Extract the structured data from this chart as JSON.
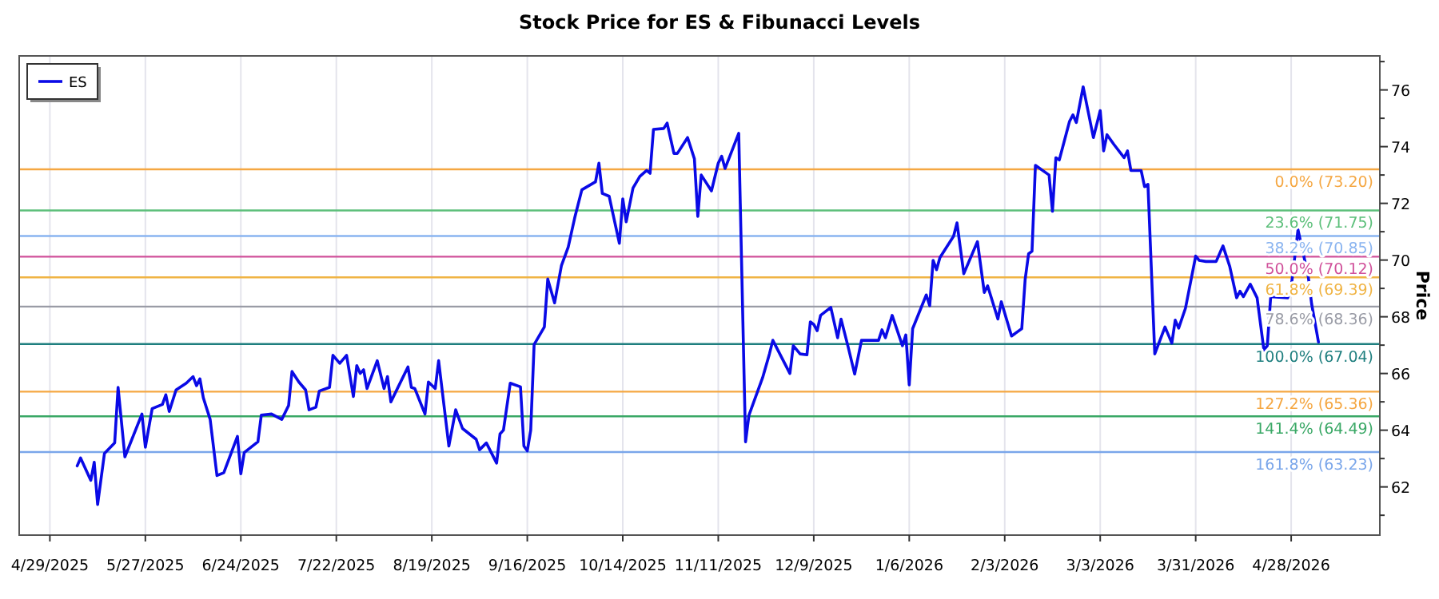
{
  "chart_data": {
    "type": "line",
    "title": "Stock Price for ES & Fibunacci Levels",
    "ylabel": "Price",
    "x": [
      "2025-05-07",
      "2025-05-08",
      "2025-05-11",
      "2025-05-12",
      "2025-05-13",
      "2025-05-15",
      "2025-05-18",
      "2025-05-19",
      "2025-05-21",
      "2025-05-26",
      "2025-05-27",
      "2025-05-29",
      "2025-06-01",
      "2025-06-02",
      "2025-06-03",
      "2025-06-05",
      "2025-06-08",
      "2025-06-10",
      "2025-06-11",
      "2025-06-12",
      "2025-06-13",
      "2025-06-15",
      "2025-06-17",
      "2025-06-19",
      "2025-06-23",
      "2025-06-24",
      "2025-06-25",
      "2025-06-29",
      "2025-06-30",
      "2025-07-03",
      "2025-07-06",
      "2025-07-08",
      "2025-07-09",
      "2025-07-11",
      "2025-07-13",
      "2025-07-14",
      "2025-07-16",
      "2025-07-17",
      "2025-07-20",
      "2025-07-21",
      "2025-07-23",
      "2025-07-25",
      "2025-07-27",
      "2025-07-28",
      "2025-07-29",
      "2025-07-30",
      "2025-07-31",
      "2025-08-03",
      "2025-08-05",
      "2025-08-06",
      "2025-08-07",
      "2025-08-12",
      "2025-08-13",
      "2025-08-14",
      "2025-08-17",
      "2025-08-18",
      "2025-08-20",
      "2025-08-21",
      "2025-08-24",
      "2025-08-26",
      "2025-08-28",
      "2025-09-01",
      "2025-09-02",
      "2025-09-04",
      "2025-09-07",
      "2025-09-08",
      "2025-09-09",
      "2025-09-11",
      "2025-09-14",
      "2025-09-15",
      "2025-09-16",
      "2025-09-17",
      "2025-09-18",
      "2025-09-21",
      "2025-09-22",
      "2025-09-24",
      "2025-09-26",
      "2025-09-28",
      "2025-09-30",
      "2025-10-02",
      "2025-10-06",
      "2025-10-07",
      "2025-10-08",
      "2025-10-10",
      "2025-10-13",
      "2025-10-14",
      "2025-10-15",
      "2025-10-17",
      "2025-10-19",
      "2025-10-21",
      "2025-10-22",
      "2025-10-23",
      "2025-10-26",
      "2025-10-27",
      "2025-10-29",
      "2025-10-30",
      "2025-11-02",
      "2025-11-04",
      "2025-11-05",
      "2025-11-06",
      "2025-11-09",
      "2025-11-11",
      "2025-11-12",
      "2025-11-13",
      "2025-11-17",
      "2025-11-19",
      "2025-11-20",
      "2025-11-24",
      "2025-11-26",
      "2025-11-27",
      "2025-12-02",
      "2025-12-03",
      "2025-12-05",
      "2025-12-07",
      "2025-12-08",
      "2025-12-09",
      "2025-12-10",
      "2025-12-11",
      "2025-12-14",
      "2025-12-16",
      "2025-12-17",
      "2025-12-19",
      "2025-12-21",
      "2025-12-23",
      "2025-12-28",
      "2025-12-29",
      "2025-12-30",
      "2026-01-01",
      "2026-01-04",
      "2026-01-05",
      "2026-01-06",
      "2026-01-07",
      "2026-01-11",
      "2026-01-12",
      "2026-01-13",
      "2026-01-14",
      "2026-01-15",
      "2026-01-19",
      "2026-01-20",
      "2026-01-22",
      "2026-01-26",
      "2026-01-28",
      "2026-01-29",
      "2026-02-01",
      "2026-02-02",
      "2026-02-05",
      "2026-02-08",
      "2026-02-09",
      "2026-02-10",
      "2026-02-11",
      "2026-02-12",
      "2026-02-16",
      "2026-02-17",
      "2026-02-18",
      "2026-02-19",
      "2026-02-22",
      "2026-02-23",
      "2026-02-24",
      "2026-02-26",
      "2026-03-01",
      "2026-03-03",
      "2026-03-04",
      "2026-03-05",
      "2026-03-07",
      "2026-03-10",
      "2026-03-11",
      "2026-03-12",
      "2026-03-15",
      "2026-03-16",
      "2026-03-17",
      "2026-03-19",
      "2026-03-22",
      "2026-03-24",
      "2026-03-25",
      "2026-03-26",
      "2026-03-28",
      "2026-03-31",
      "2026-04-01",
      "2026-04-03",
      "2026-04-06",
      "2026-04-08",
      "2026-04-10",
      "2026-04-12",
      "2026-04-13",
      "2026-04-14",
      "2026-04-16",
      "2026-04-18",
      "2026-04-20",
      "2026-04-21",
      "2026-04-22",
      "2026-04-27",
      "2026-04-28",
      "2026-04-30",
      "2026-05-03",
      "2026-05-04",
      "2026-05-06"
    ],
    "series": [
      {
        "name": "ES",
        "color": "#0a0ae6",
        "values": [
          62.74,
          63.02,
          62.23,
          62.87,
          61.38,
          63.18,
          63.55,
          65.51,
          63.06,
          64.57,
          63.4,
          64.76,
          64.91,
          65.25,
          64.66,
          65.42,
          65.66,
          65.89,
          65.57,
          65.81,
          65.14,
          64.38,
          62.4,
          62.5,
          63.78,
          62.46,
          63.21,
          63.59,
          64.53,
          64.57,
          64.38,
          64.87,
          66.07,
          65.7,
          65.42,
          64.72,
          64.81,
          65.38,
          65.51,
          66.64,
          66.36,
          66.64,
          65.19,
          66.28,
          66.0,
          66.13,
          65.47,
          66.45,
          65.47,
          65.89,
          65.0,
          66.23,
          65.51,
          65.47,
          64.57,
          65.7,
          65.47,
          66.45,
          63.44,
          64.72,
          64.06,
          63.68,
          63.31,
          63.55,
          62.84,
          63.87,
          64.0,
          65.66,
          65.53,
          63.44,
          63.27,
          64.0,
          67.02,
          67.64,
          69.33,
          68.49,
          69.8,
          70.46,
          71.54,
          72.48,
          72.76,
          73.42,
          72.35,
          72.25,
          70.59,
          72.16,
          71.35,
          72.54,
          72.95,
          73.16,
          73.06,
          74.61,
          74.64,
          74.83,
          73.76,
          73.76,
          74.32,
          73.57,
          71.54,
          73.0,
          72.44,
          73.42,
          73.66,
          73.23,
          74.47,
          63.59,
          64.53,
          65.85,
          66.69,
          67.17,
          66.0,
          66.98,
          66.69,
          66.66,
          67.82,
          67.73,
          67.51,
          68.05,
          68.33,
          67.26,
          67.92,
          66.98,
          65.98,
          67.17,
          67.17,
          67.54,
          67.26,
          68.05,
          66.98,
          67.36,
          65.6,
          67.58,
          68.77,
          68.39,
          69.99,
          69.66,
          70.09,
          70.84,
          71.31,
          69.52,
          70.65,
          68.86,
          69.09,
          67.92,
          68.53,
          67.32,
          67.58,
          69.33,
          70.22,
          70.31,
          73.34,
          73.0,
          71.72,
          73.61,
          73.53,
          74.89,
          75.12,
          74.85,
          76.11,
          74.32,
          75.27,
          73.85,
          74.42,
          74.08,
          73.61,
          73.85,
          73.16,
          73.16,
          72.59,
          72.67,
          66.69,
          67.64,
          67.07,
          67.88,
          67.6,
          68.3,
          70.14,
          69.99,
          69.95,
          69.95,
          70.5,
          69.77,
          68.67,
          68.9,
          68.71,
          69.15,
          68.67,
          66.83,
          66.98,
          68.71,
          68.67,
          69.05,
          71.07,
          69.43,
          68.45,
          67.11
        ]
      }
    ],
    "xlim": [
      "2025-04-20",
      "2026-05-24"
    ],
    "xticks": [
      {
        "value": "2025-04-29",
        "label": "4/29/2025"
      },
      {
        "value": "2025-05-27",
        "label": "5/27/2025"
      },
      {
        "value": "2025-06-24",
        "label": "6/24/2025"
      },
      {
        "value": "2025-07-22",
        "label": "7/22/2025"
      },
      {
        "value": "2025-08-19",
        "label": "8/19/2025"
      },
      {
        "value": "2025-09-16",
        "label": "9/16/2025"
      },
      {
        "value": "2025-10-14",
        "label": "10/14/2025"
      },
      {
        "value": "2025-11-11",
        "label": "11/11/2025"
      },
      {
        "value": "2025-12-09",
        "label": "12/9/2025"
      },
      {
        "value": "2026-01-06",
        "label": "1/6/2026"
      },
      {
        "value": "2026-02-03",
        "label": "2/3/2026"
      },
      {
        "value": "2026-03-03",
        "label": "3/3/2026"
      },
      {
        "value": "2026-03-31",
        "label": "3/31/2026"
      },
      {
        "value": "2026-04-28",
        "label": "4/28/2026"
      }
    ],
    "ylim": [
      60.3,
      77.2
    ],
    "yticks": [
      {
        "value": 61,
        "label": null
      },
      62,
      {
        "value": 63,
        "label": null
      },
      64,
      {
        "value": 65,
        "label": null
      },
      66,
      {
        "value": 67,
        "label": null
      },
      68,
      {
        "value": 69,
        "label": null
      },
      70,
      {
        "value": 71,
        "label": null
      },
      72,
      {
        "value": 73,
        "label": null
      },
      74,
      {
        "value": 75,
        "label": null
      },
      76,
      {
        "value": 77,
        "label": null
      }
    ],
    "ref_lines": [
      {
        "axis": "y",
        "value": 73.2,
        "label": "0.0% (73.20)",
        "color": "#f5a742"
      },
      {
        "axis": "y",
        "value": 71.75,
        "label": "23.6% (71.75)",
        "color": "#5cbf7a"
      },
      {
        "axis": "y",
        "value": 70.85,
        "label": "38.2% (70.85)",
        "color": "#8ab4f0"
      },
      {
        "axis": "y",
        "value": 70.12,
        "label": "50.0% (70.12)",
        "color": "#d0509a"
      },
      {
        "axis": "y",
        "value": 69.39,
        "label": "61.8% (69.39)",
        "color": "#f0b444"
      },
      {
        "axis": "y",
        "value": 68.36,
        "label": "78.6% (68.36)",
        "color": "#9a9ca6"
      },
      {
        "axis": "y",
        "value": 67.04,
        "label": "100.0% (67.04)",
        "color": "#1f7f7f"
      },
      {
        "axis": "y",
        "value": 65.36,
        "label": "127.2% (65.36)",
        "color": "#f5a742"
      },
      {
        "axis": "y",
        "value": 64.49,
        "label": "141.4% (64.49)",
        "color": "#3aa866"
      },
      {
        "axis": "y",
        "value": 63.23,
        "label": "161.8% (63.23)",
        "color": "#7aa6ea"
      }
    ],
    "grid": "x",
    "legend": "top left",
    "line_style": "solid",
    "marker": "none"
  }
}
